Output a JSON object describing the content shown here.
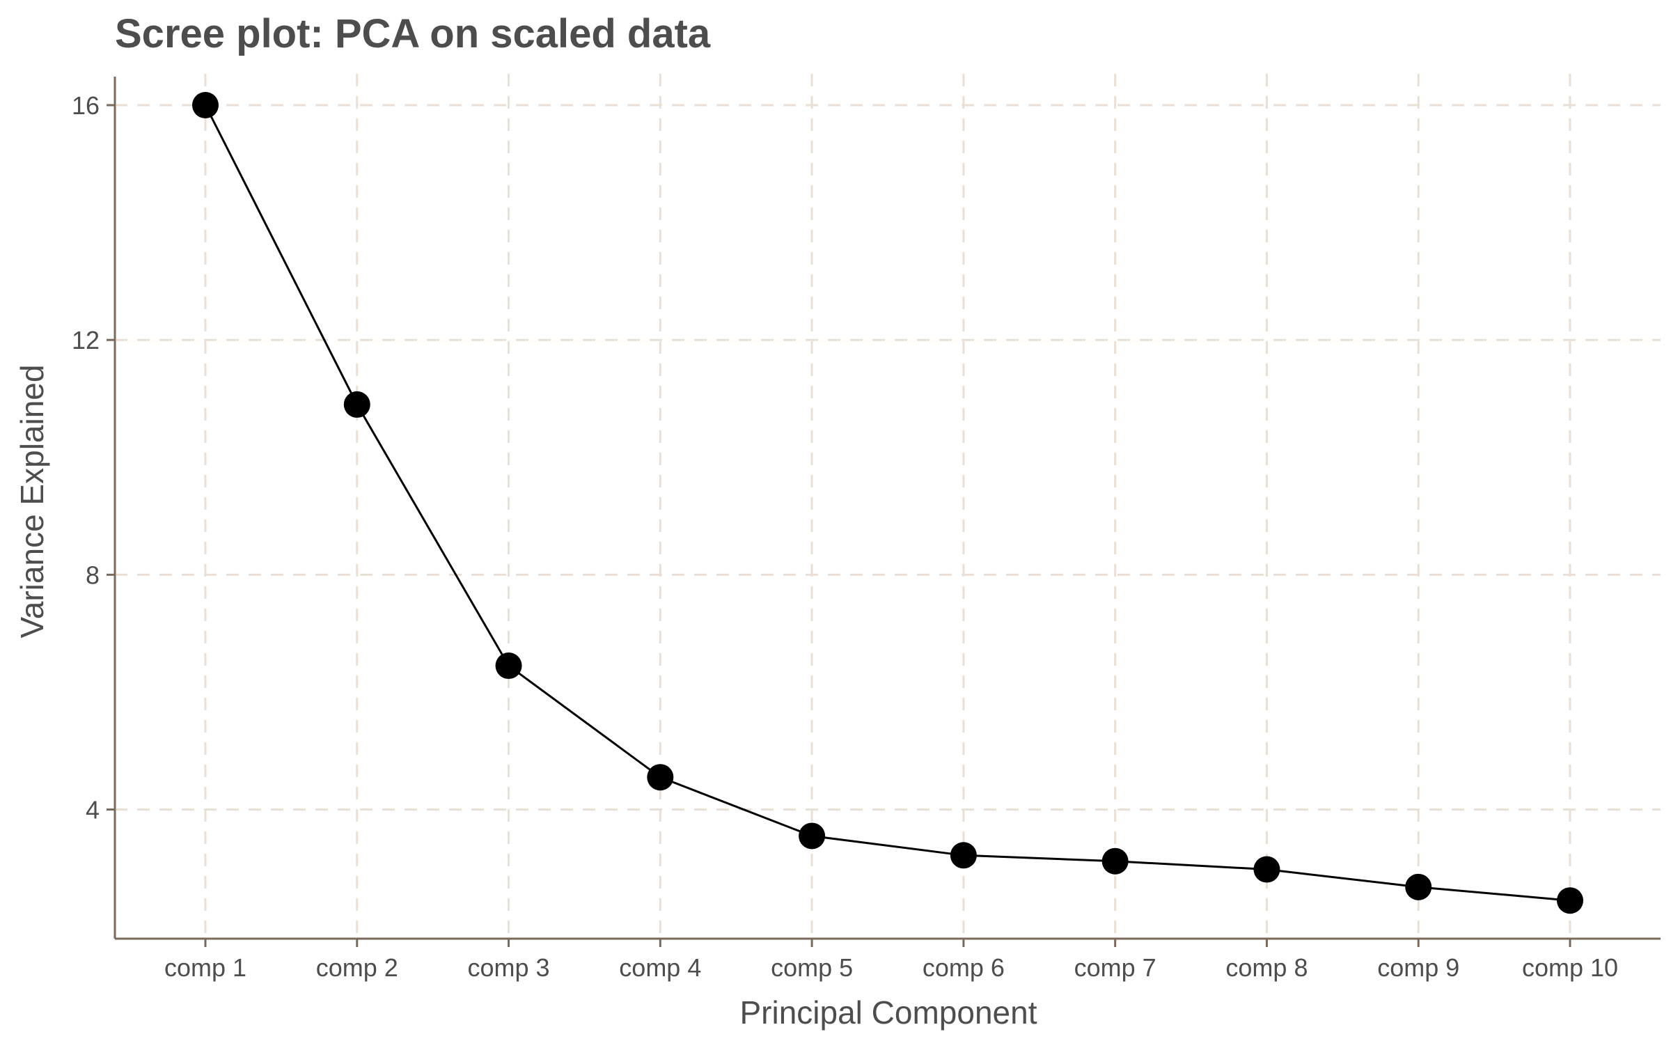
{
  "chart_data": {
    "type": "line",
    "title": "Scree plot: PCA on scaled data",
    "xlabel": "Principal Component",
    "ylabel": "Variance Explained",
    "categories": [
      "comp 1",
      "comp 2",
      "comp 3",
      "comp 4",
      "comp 5",
      "comp 6",
      "comp 7",
      "comp 8",
      "comp 9",
      "comp 10"
    ],
    "values": [
      16.0,
      10.9,
      6.45,
      4.55,
      3.55,
      3.22,
      3.12,
      2.98,
      2.68,
      2.45
    ],
    "yticks": [
      4,
      8,
      12,
      16
    ],
    "ylim": [
      1.8,
      16.7
    ],
    "grid": true,
    "markers": true,
    "colors": {
      "line": "#000000",
      "points": "#000000",
      "grid": "#eadfd5",
      "axis": "#7a6a5c",
      "text": "#4d4d4d"
    }
  }
}
